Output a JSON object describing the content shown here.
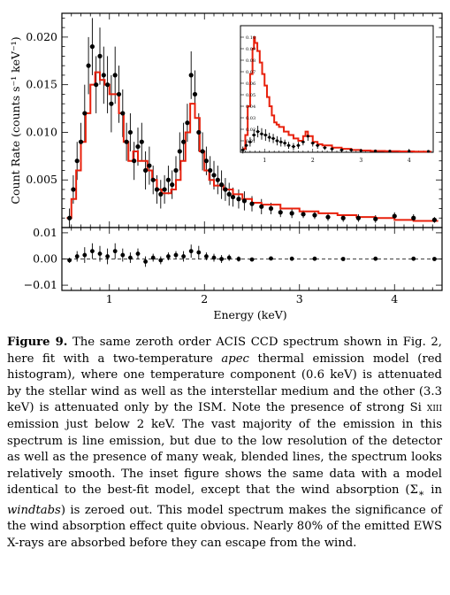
{
  "figure": {
    "main_ylabel": "Count Rate (counts s⁻¹ keV⁻¹)",
    "xlabel": "Energy (keV)",
    "main_yticks": [
      "0.005",
      "0.010",
      "0.015",
      "0.020"
    ],
    "resid_yticks": [
      "0.01",
      "0.00",
      "−0.01"
    ],
    "xticks": [
      "1",
      "2",
      "3",
      "4"
    ],
    "inset_yticks": [
      "0.01",
      "0.02",
      "0.03",
      "0.04",
      "0.05",
      "0.06",
      "0.07",
      "0.08",
      "0.09",
      "0.10"
    ],
    "inset_xticks": [
      "1",
      "2",
      "3",
      "4"
    ],
    "colors": {
      "model": "#e8200c",
      "data": "#000000"
    }
  },
  "chart_data": [
    {
      "type": "scatter",
      "panel": "main",
      "xlabel": "Energy (keV)",
      "ylabel": "Count Rate (counts s⁻¹ keV⁻¹)",
      "xlim": [
        0.5,
        4.5
      ],
      "ylim": [
        0.0,
        0.0225
      ],
      "x": [
        0.58,
        0.62,
        0.66,
        0.7,
        0.74,
        0.78,
        0.82,
        0.86,
        0.9,
        0.94,
        0.98,
        1.02,
        1.06,
        1.1,
        1.14,
        1.18,
        1.22,
        1.26,
        1.3,
        1.34,
        1.38,
        1.42,
        1.46,
        1.5,
        1.54,
        1.58,
        1.62,
        1.66,
        1.7,
        1.74,
        1.78,
        1.82,
        1.86,
        1.9,
        1.94,
        1.98,
        2.02,
        2.06,
        2.1,
        2.14,
        2.18,
        2.22,
        2.26,
        2.3,
        2.36,
        2.42,
        2.5,
        2.6,
        2.7,
        2.8,
        2.92,
        3.04,
        3.16,
        3.3,
        3.46,
        3.62,
        3.8,
        4.0,
        4.2,
        4.42
      ],
      "y": [
        0.001,
        0.004,
        0.007,
        0.009,
        0.012,
        0.017,
        0.019,
        0.015,
        0.018,
        0.016,
        0.015,
        0.013,
        0.016,
        0.014,
        0.012,
        0.009,
        0.01,
        0.007,
        0.0085,
        0.009,
        0.006,
        0.0065,
        0.005,
        0.004,
        0.0035,
        0.004,
        0.005,
        0.0045,
        0.006,
        0.008,
        0.009,
        0.011,
        0.016,
        0.014,
        0.01,
        0.008,
        0.007,
        0.006,
        0.0055,
        0.005,
        0.0045,
        0.004,
        0.0035,
        0.0032,
        0.003,
        0.0028,
        0.0025,
        0.0022,
        0.002,
        0.0016,
        0.0015,
        0.0014,
        0.0013,
        0.0011,
        0.001,
        0.001,
        0.0009,
        0.0012,
        0.001,
        0.0008
      ],
      "y_err": [
        0.001,
        0.0015,
        0.002,
        0.002,
        0.003,
        0.003,
        0.003,
        0.003,
        0.003,
        0.003,
        0.003,
        0.003,
        0.003,
        0.003,
        0.0025,
        0.002,
        0.002,
        0.002,
        0.002,
        0.002,
        0.002,
        0.002,
        0.0015,
        0.0015,
        0.0015,
        0.0015,
        0.0015,
        0.0015,
        0.0015,
        0.002,
        0.002,
        0.002,
        0.0025,
        0.0025,
        0.002,
        0.002,
        0.0015,
        0.0015,
        0.0015,
        0.0015,
        0.0015,
        0.0012,
        0.0012,
        0.001,
        0.001,
        0.001,
        0.0008,
        0.0008,
        0.0006,
        0.0005,
        0.0005,
        0.0004,
        0.0004,
        0.0004,
        0.0004,
        0.0004,
        0.0004,
        0.0004,
        0.0004,
        0.0003
      ],
      "model_x": [
        0.55,
        0.6,
        0.65,
        0.7,
        0.75,
        0.8,
        0.85,
        0.9,
        0.95,
        1.0,
        1.05,
        1.1,
        1.15,
        1.2,
        1.25,
        1.3,
        1.35,
        1.4,
        1.45,
        1.5,
        1.55,
        1.6,
        1.65,
        1.7,
        1.75,
        1.8,
        1.85,
        1.9,
        1.95,
        2.0,
        2.05,
        2.1,
        2.2,
        2.3,
        2.4,
        2.5,
        2.6,
        2.8,
        3.0,
        3.2,
        3.4,
        3.6,
        3.8,
        4.0,
        4.2,
        4.45
      ],
      "model_y": [
        0.001,
        0.003,
        0.006,
        0.009,
        0.012,
        0.015,
        0.0163,
        0.0155,
        0.015,
        0.014,
        0.014,
        0.012,
        0.009,
        0.007,
        0.008,
        0.007,
        0.007,
        0.006,
        0.005,
        0.004,
        0.0036,
        0.0036,
        0.004,
        0.005,
        0.007,
        0.01,
        0.013,
        0.0115,
        0.008,
        0.006,
        0.005,
        0.0044,
        0.004,
        0.0035,
        0.003,
        0.0026,
        0.0024,
        0.002,
        0.0017,
        0.0015,
        0.0013,
        0.0011,
        0.001,
        0.0008,
        0.0007,
        0.0006
      ]
    },
    {
      "type": "scatter",
      "panel": "residuals",
      "xlabel": "Energy (keV)",
      "xlim": [
        0.5,
        4.5
      ],
      "ylim": [
        -0.012,
        0.012
      ],
      "x": [
        0.58,
        0.66,
        0.74,
        0.82,
        0.9,
        0.98,
        1.06,
        1.14,
        1.22,
        1.3,
        1.38,
        1.46,
        1.54,
        1.62,
        1.7,
        1.78,
        1.86,
        1.94,
        2.02,
        2.1,
        2.18,
        2.26,
        2.36,
        2.5,
        2.7,
        2.92,
        3.16,
        3.46,
        3.8,
        4.2,
        4.42
      ],
      "y": [
        -0.0005,
        0.001,
        0.0015,
        0.003,
        0.002,
        0.001,
        0.003,
        0.0015,
        0.0005,
        0.002,
        -0.001,
        0.0005,
        -0.0005,
        0.001,
        0.0015,
        0.001,
        0.003,
        0.0025,
        0.001,
        0.0005,
        0.0,
        0.0005,
        0.0,
        -0.0002,
        0.0002,
        0.0001,
        0.0001,
        0.0,
        0.0001,
        0.0001,
        0.0
      ],
      "y_err": [
        0.001,
        0.002,
        0.003,
        0.003,
        0.003,
        0.003,
        0.003,
        0.0025,
        0.002,
        0.002,
        0.002,
        0.0015,
        0.0015,
        0.0015,
        0.0015,
        0.002,
        0.0025,
        0.0025,
        0.0015,
        0.0015,
        0.0015,
        0.0012,
        0.001,
        0.0008,
        0.0006,
        0.0005,
        0.0004,
        0.0004,
        0.0004,
        0.0004,
        0.0003
      ]
    },
    {
      "type": "scatter",
      "panel": "inset",
      "xlim": [
        0.5,
        4.5
      ],
      "ylim": [
        0.0,
        0.11
      ],
      "x": [
        0.55,
        0.62,
        0.7,
        0.78,
        0.86,
        0.94,
        1.02,
        1.1,
        1.18,
        1.26,
        1.34,
        1.42,
        1.5,
        1.6,
        1.7,
        1.8,
        1.9,
        2.0,
        2.1,
        2.25,
        2.4,
        2.6,
        2.8,
        3.0,
        3.3,
        3.6,
        4.0,
        4.4
      ],
      "y": [
        0.002,
        0.006,
        0.009,
        0.015,
        0.018,
        0.016,
        0.015,
        0.013,
        0.012,
        0.01,
        0.009,
        0.008,
        0.006,
        0.005,
        0.006,
        0.009,
        0.014,
        0.008,
        0.006,
        0.004,
        0.003,
        0.002,
        0.002,
        0.0015,
        0.0012,
        0.001,
        0.001,
        0.0008
      ],
      "y_err": [
        0.003,
        0.004,
        0.004,
        0.005,
        0.005,
        0.005,
        0.005,
        0.004,
        0.004,
        0.004,
        0.004,
        0.003,
        0.003,
        0.003,
        0.003,
        0.003,
        0.004,
        0.003,
        0.003,
        0.002,
        0.002,
        0.002,
        0.001,
        0.001,
        0.001,
        0.001,
        0.001,
        0.001
      ],
      "model_x": [
        0.55,
        0.6,
        0.65,
        0.7,
        0.75,
        0.78,
        0.8,
        0.85,
        0.9,
        0.95,
        1.0,
        1.05,
        1.1,
        1.15,
        1.2,
        1.25,
        1.3,
        1.4,
        1.5,
        1.6,
        1.7,
        1.75,
        1.8,
        1.85,
        1.9,
        2.0,
        2.1,
        2.2,
        2.4,
        2.6,
        2.8,
        3.0,
        3.2,
        3.5,
        3.8,
        4.1,
        4.45
      ],
      "model_y": [
        0.003,
        0.015,
        0.04,
        0.068,
        0.09,
        0.1,
        0.095,
        0.088,
        0.078,
        0.068,
        0.058,
        0.048,
        0.04,
        0.032,
        0.026,
        0.024,
        0.022,
        0.018,
        0.015,
        0.012,
        0.01,
        0.01,
        0.014,
        0.018,
        0.014,
        0.009,
        0.007,
        0.006,
        0.004,
        0.003,
        0.002,
        0.0015,
        0.0012,
        0.001,
        0.0008,
        0.0006,
        0.0004
      ]
    }
  ],
  "caption": {
    "label": "Figure 9.",
    "t1": " The same zeroth order ACIS CCD spectrum shown in Fig. 2, here fit with a two-temperature ",
    "apec": "apec",
    "t2": " thermal emission model (red histogram), where one temperature component (0.6 keV) is attenuated by the stellar wind as well as the interstellar medium and the other (3.3 keV) is attenuated only by the ISM. Note the presence of strong Si ",
    "ion": "xiii",
    "t3": " emission just below 2 keV. The vast majority of the emission in this spectrum is line emission, but due to the low resolution of the detector as well as the presence of many weak, blended lines, the spectrum looks relatively smooth. The inset figure shows the same data with a model identical to the best-fit model, except that the wind absorption (",
    "sigma": "Σ",
    "sigma_sub": "∗",
    "t4": " in ",
    "windtabs": "windtabs",
    "t5": ") is zeroed out. This model spectrum makes the significance of the wind absorption effect quite obvious. Nearly 80% of the emitted EWS X-rays are absorbed before they can escape from the wind."
  }
}
